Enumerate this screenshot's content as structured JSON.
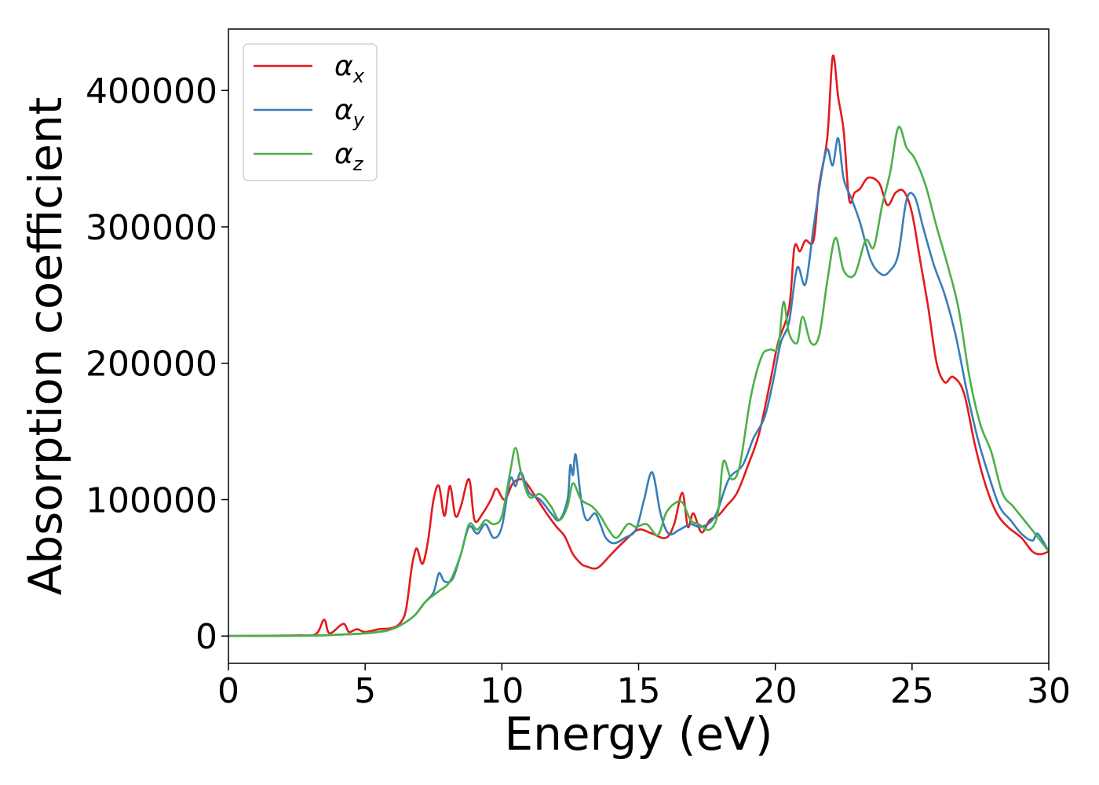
{
  "chart_data": {
    "type": "line",
    "xlabel": "Energy (eV)",
    "ylabel": "Absorption coefficient",
    "xlim": [
      0,
      30
    ],
    "ylim": [
      -20000,
      445000
    ],
    "xticks": [
      0,
      5,
      10,
      15,
      20,
      25,
      30
    ],
    "xtick_labels": [
      "0",
      "5",
      "10",
      "15",
      "20",
      "25",
      "30"
    ],
    "yticks": [
      0,
      100000,
      200000,
      300000,
      400000
    ],
    "ytick_labels": [
      "0",
      "100000",
      "200000",
      "300000",
      "400000"
    ],
    "grid": false,
    "legend": {
      "placement": "top-left"
    },
    "series": [
      {
        "name": "αx",
        "legend_base": "α",
        "legend_sub": "x",
        "color": "#e41a1c",
        "points": [
          [
            0,
            0
          ],
          [
            2.5,
            500
          ],
          [
            3.2,
            1500
          ],
          [
            3.5,
            12000
          ],
          [
            3.7,
            2000
          ],
          [
            4.2,
            9000
          ],
          [
            4.4,
            3000
          ],
          [
            4.7,
            5000
          ],
          [
            5,
            3000
          ],
          [
            5.5,
            5000
          ],
          [
            6,
            6000
          ],
          [
            6.3,
            10000
          ],
          [
            6.5,
            20000
          ],
          [
            6.7,
            50000
          ],
          [
            6.8,
            60000
          ],
          [
            6.9,
            64000
          ],
          [
            7.1,
            53000
          ],
          [
            7.3,
            70000
          ],
          [
            7.5,
            100000
          ],
          [
            7.7,
            110000
          ],
          [
            7.9,
            88000
          ],
          [
            8.1,
            110000
          ],
          [
            8.3,
            88000
          ],
          [
            8.5,
            95000
          ],
          [
            8.8,
            115000
          ],
          [
            9,
            85000
          ],
          [
            9.3,
            90000
          ],
          [
            9.6,
            100000
          ],
          [
            9.8,
            108000
          ],
          [
            10.1,
            100000
          ],
          [
            10.4,
            112000
          ],
          [
            10.7,
            115000
          ],
          [
            10.9,
            112000
          ],
          [
            11.3,
            100000
          ],
          [
            11.7,
            88000
          ],
          [
            12,
            80000
          ],
          [
            12.3,
            73000
          ],
          [
            12.6,
            60000
          ],
          [
            12.9,
            53000
          ],
          [
            13.1,
            51000
          ],
          [
            13.5,
            50000
          ],
          [
            14,
            60000
          ],
          [
            14.5,
            70000
          ],
          [
            15,
            78000
          ],
          [
            15.5,
            75000
          ],
          [
            16,
            72000
          ],
          [
            16.3,
            82000
          ],
          [
            16.6,
            105000
          ],
          [
            16.8,
            80000
          ],
          [
            17,
            90000
          ],
          [
            17.3,
            76000
          ],
          [
            17.6,
            85000
          ],
          [
            17.9,
            88000
          ],
          [
            18.2,
            95000
          ],
          [
            18.6,
            105000
          ],
          [
            19,
            125000
          ],
          [
            19.4,
            148000
          ],
          [
            19.8,
            185000
          ],
          [
            20.1,
            215000
          ],
          [
            20.5,
            240000
          ],
          [
            20.7,
            285000
          ],
          [
            20.9,
            282000
          ],
          [
            21.1,
            290000
          ],
          [
            21.4,
            290000
          ],
          [
            21.6,
            330000
          ],
          [
            21.9,
            365000
          ],
          [
            22.1,
            425000
          ],
          [
            22.3,
            395000
          ],
          [
            22.5,
            370000
          ],
          [
            22.7,
            320000
          ],
          [
            22.9,
            325000
          ],
          [
            23.1,
            328000
          ],
          [
            23.4,
            336000
          ],
          [
            23.8,
            332000
          ],
          [
            24.1,
            316000
          ],
          [
            24.4,
            325000
          ],
          [
            24.7,
            326000
          ],
          [
            25,
            310000
          ],
          [
            25.3,
            275000
          ],
          [
            25.6,
            240000
          ],
          [
            25.9,
            200000
          ],
          [
            26.2,
            186000
          ],
          [
            26.5,
            190000
          ],
          [
            26.9,
            178000
          ],
          [
            27.3,
            140000
          ],
          [
            27.7,
            110000
          ],
          [
            28.1,
            90000
          ],
          [
            28.5,
            80000
          ],
          [
            29,
            72000
          ],
          [
            29.4,
            62000
          ],
          [
            29.7,
            60000
          ],
          [
            30,
            62000
          ]
        ]
      },
      {
        "name": "αy",
        "legend_base": "α",
        "legend_sub": "y",
        "color": "#377eb8",
        "points": [
          [
            0,
            0
          ],
          [
            3,
            300
          ],
          [
            4,
            1000
          ],
          [
            5,
            2000
          ],
          [
            5.8,
            4000
          ],
          [
            6.3,
            8000
          ],
          [
            6.8,
            15000
          ],
          [
            7.2,
            25000
          ],
          [
            7.5,
            32000
          ],
          [
            7.7,
            46000
          ],
          [
            7.9,
            40000
          ],
          [
            8.2,
            42000
          ],
          [
            8.5,
            60000
          ],
          [
            8.8,
            80000
          ],
          [
            9.1,
            75000
          ],
          [
            9.4,
            82000
          ],
          [
            9.7,
            72000
          ],
          [
            10,
            80000
          ],
          [
            10.3,
            115000
          ],
          [
            10.5,
            110000
          ],
          [
            10.7,
            120000
          ],
          [
            11,
            105000
          ],
          [
            11.4,
            100000
          ],
          [
            11.8,
            90000
          ],
          [
            12.1,
            85000
          ],
          [
            12.4,
            100000
          ],
          [
            12.5,
            125000
          ],
          [
            12.6,
            118000
          ],
          [
            12.7,
            133000
          ],
          [
            12.9,
            100000
          ],
          [
            13.1,
            85000
          ],
          [
            13.4,
            90000
          ],
          [
            13.6,
            82000
          ],
          [
            13.8,
            72000
          ],
          [
            14.1,
            68000
          ],
          [
            14.5,
            72000
          ],
          [
            14.9,
            78000
          ],
          [
            15.2,
            100000
          ],
          [
            15.5,
            120000
          ],
          [
            15.8,
            90000
          ],
          [
            16.1,
            75000
          ],
          [
            16.5,
            78000
          ],
          [
            16.9,
            82000
          ],
          [
            17.3,
            80000
          ],
          [
            17.8,
            88000
          ],
          [
            18.3,
            115000
          ],
          [
            18.8,
            125000
          ],
          [
            19.2,
            145000
          ],
          [
            19.6,
            160000
          ],
          [
            19.9,
            185000
          ],
          [
            20.2,
            215000
          ],
          [
            20.5,
            230000
          ],
          [
            20.8,
            270000
          ],
          [
            21.1,
            258000
          ],
          [
            21.4,
            300000
          ],
          [
            21.7,
            340000
          ],
          [
            21.9,
            357000
          ],
          [
            22.1,
            345000
          ],
          [
            22.3,
            365000
          ],
          [
            22.5,
            335000
          ],
          [
            22.8,
            320000
          ],
          [
            23.1,
            303000
          ],
          [
            23.5,
            275000
          ],
          [
            23.9,
            265000
          ],
          [
            24.2,
            268000
          ],
          [
            24.5,
            280000
          ],
          [
            24.8,
            320000
          ],
          [
            25.1,
            322000
          ],
          [
            25.4,
            300000
          ],
          [
            25.8,
            272000
          ],
          [
            26.2,
            250000
          ],
          [
            26.6,
            220000
          ],
          [
            27,
            180000
          ],
          [
            27.4,
            145000
          ],
          [
            27.8,
            118000
          ],
          [
            28.2,
            95000
          ],
          [
            28.6,
            85000
          ],
          [
            29,
            75000
          ],
          [
            29.4,
            70000
          ],
          [
            29.6,
            75000
          ],
          [
            30,
            62000
          ]
        ]
      },
      {
        "name": "αz",
        "legend_base": "α",
        "legend_sub": "z",
        "color": "#4daf4a",
        "points": [
          [
            0,
            0
          ],
          [
            3,
            300
          ],
          [
            4,
            1000
          ],
          [
            5,
            2000
          ],
          [
            5.8,
            4000
          ],
          [
            6.3,
            8000
          ],
          [
            6.8,
            15000
          ],
          [
            7.2,
            25000
          ],
          [
            7.7,
            33000
          ],
          [
            8.1,
            40000
          ],
          [
            8.5,
            60000
          ],
          [
            8.8,
            82000
          ],
          [
            9.1,
            78000
          ],
          [
            9.4,
            85000
          ],
          [
            9.7,
            82000
          ],
          [
            10,
            88000
          ],
          [
            10.3,
            120000
          ],
          [
            10.5,
            138000
          ],
          [
            10.7,
            120000
          ],
          [
            11,
            102000
          ],
          [
            11.4,
            104000
          ],
          [
            11.8,
            95000
          ],
          [
            12.1,
            85000
          ],
          [
            12.4,
            95000
          ],
          [
            12.6,
            112000
          ],
          [
            12.9,
            100000
          ],
          [
            13.3,
            95000
          ],
          [
            13.6,
            88000
          ],
          [
            13.9,
            78000
          ],
          [
            14.2,
            72000
          ],
          [
            14.6,
            82000
          ],
          [
            14.9,
            80000
          ],
          [
            15.3,
            82000
          ],
          [
            15.7,
            74000
          ],
          [
            16,
            90000
          ],
          [
            16.3,
            97000
          ],
          [
            16.6,
            98000
          ],
          [
            16.9,
            85000
          ],
          [
            17.2,
            82000
          ],
          [
            17.6,
            78000
          ],
          [
            17.9,
            90000
          ],
          [
            18.1,
            128000
          ],
          [
            18.4,
            115000
          ],
          [
            18.7,
            125000
          ],
          [
            19.1,
            175000
          ],
          [
            19.5,
            205000
          ],
          [
            19.8,
            210000
          ],
          [
            20.1,
            212000
          ],
          [
            20.3,
            245000
          ],
          [
            20.5,
            222000
          ],
          [
            20.8,
            215000
          ],
          [
            21,
            234000
          ],
          [
            21.3,
            215000
          ],
          [
            21.6,
            220000
          ],
          [
            21.9,
            260000
          ],
          [
            22.2,
            292000
          ],
          [
            22.5,
            268000
          ],
          [
            22.9,
            265000
          ],
          [
            23.3,
            290000
          ],
          [
            23.6,
            285000
          ],
          [
            23.9,
            315000
          ],
          [
            24.2,
            340000
          ],
          [
            24.5,
            373000
          ],
          [
            24.8,
            358000
          ],
          [
            25.1,
            350000
          ],
          [
            25.5,
            330000
          ],
          [
            25.9,
            300000
          ],
          [
            26.3,
            272000
          ],
          [
            26.7,
            240000
          ],
          [
            27.1,
            190000
          ],
          [
            27.5,
            155000
          ],
          [
            27.9,
            135000
          ],
          [
            28.3,
            105000
          ],
          [
            28.7,
            95000
          ],
          [
            29.1,
            85000
          ],
          [
            29.5,
            75000
          ],
          [
            30,
            62000
          ]
        ]
      }
    ]
  }
}
